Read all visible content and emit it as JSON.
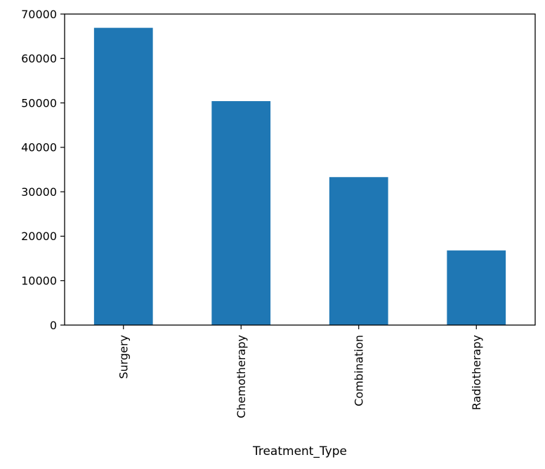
{
  "chart_data": {
    "type": "bar",
    "title": "",
    "xlabel": "Treatment_Type",
    "ylabel": "",
    "categories": [
      "Surgery",
      "Chemotherapy",
      "Combination",
      "Radiotherapy"
    ],
    "values": [
      66900,
      50400,
      33300,
      16800
    ],
    "ylim": [
      0,
      70000
    ],
    "yticks": [
      0,
      10000,
      20000,
      30000,
      40000,
      50000,
      60000,
      70000
    ],
    "bar_color": "#1f77b4",
    "grid": false,
    "legend": "none"
  }
}
